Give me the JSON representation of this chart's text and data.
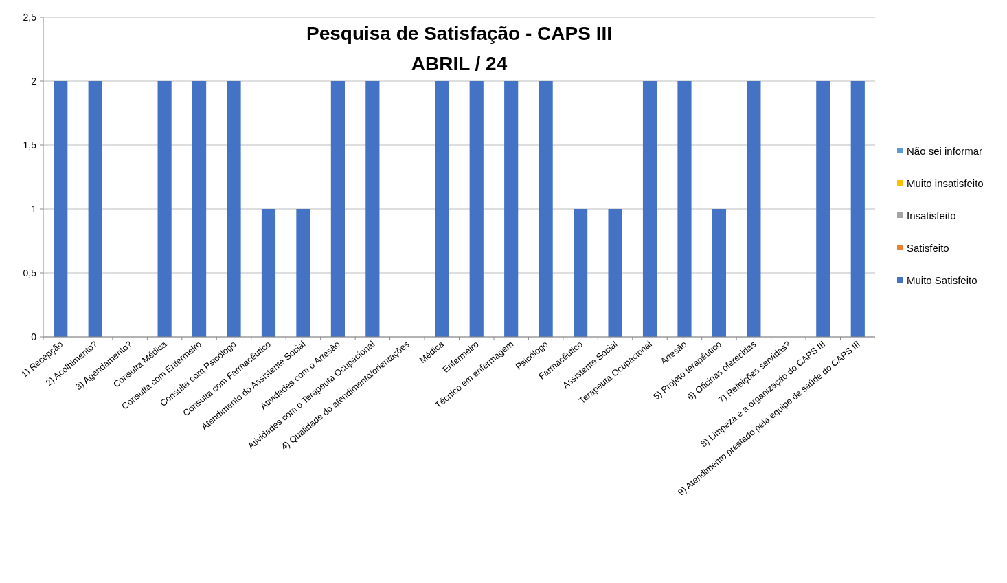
{
  "chart_data": {
    "type": "bar",
    "title": "Pesquisa de Satisfação - CAPS III",
    "subtitle": "ABRIL / 24",
    "categories": [
      "1) Recepção",
      "2) Acolhimento?",
      "3) Agendamento?",
      "Consulta Médica",
      "Consulta com Enfermeiro",
      "Consulta com Psicólogo",
      "Consulta com Farmacêutico",
      "Atendimento do Assistente Social",
      "Atividades com o Artesão",
      "Atividades com o Terapeuta Ocupacional",
      "4) Qualidade do atendimento/orientações",
      "Médica",
      "Enfermeiro",
      "Técnico em enfermagem",
      "Psicólogo",
      "Farmacêutico",
      "Assistente Social",
      "Terapeuta Ocupacional",
      "Artesão",
      "5) Projeto terapêutico",
      "6) Oficinas oferecidas",
      "7) Refeições servidas?",
      "8) Limpeza e a organização do CAPS III",
      "9) Atendimento prestado pela equipe de saúde do CAPS III"
    ],
    "series": [
      {
        "name": "Não sei informar",
        "color": "#5b9bd5",
        "values": [
          null,
          null,
          null,
          null,
          null,
          null,
          null,
          null,
          null,
          null,
          null,
          null,
          null,
          null,
          null,
          null,
          null,
          null,
          null,
          null,
          null,
          null,
          null,
          null
        ]
      },
      {
        "name": "Muito insatisfeito",
        "color": "#ffc000",
        "values": [
          null,
          null,
          null,
          null,
          null,
          null,
          null,
          null,
          null,
          null,
          null,
          null,
          null,
          null,
          null,
          null,
          null,
          null,
          null,
          null,
          null,
          null,
          null,
          null
        ]
      },
      {
        "name": "Insatisfeito",
        "color": "#a5a5a5",
        "values": [
          null,
          null,
          null,
          null,
          null,
          null,
          null,
          null,
          null,
          null,
          null,
          null,
          null,
          null,
          null,
          null,
          null,
          null,
          null,
          null,
          null,
          null,
          null,
          null
        ]
      },
      {
        "name": "Satisfeito",
        "color": "#ed7d31",
        "values": [
          null,
          null,
          null,
          null,
          null,
          null,
          null,
          null,
          null,
          null,
          null,
          null,
          null,
          null,
          null,
          null,
          null,
          null,
          null,
          null,
          null,
          null,
          null,
          null
        ]
      },
      {
        "name": "Muito Satisfeito",
        "color": "#4472c4",
        "values": [
          2,
          2,
          0,
          2,
          2,
          2,
          1,
          1,
          2,
          2,
          0,
          2,
          2,
          2,
          2,
          1,
          1,
          2,
          2,
          1,
          2,
          0,
          2,
          2
        ]
      }
    ],
    "ylim": [
      0,
      2.5
    ],
    "yticks": [
      0,
      {
        "value": 0.5,
        "label": "0,5"
      },
      1,
      {
        "value": 1.5,
        "label": "1,5"
      },
      2,
      {
        "value": 2.5,
        "label": "2,5"
      }
    ],
    "grid": "y",
    "legend": "right"
  }
}
